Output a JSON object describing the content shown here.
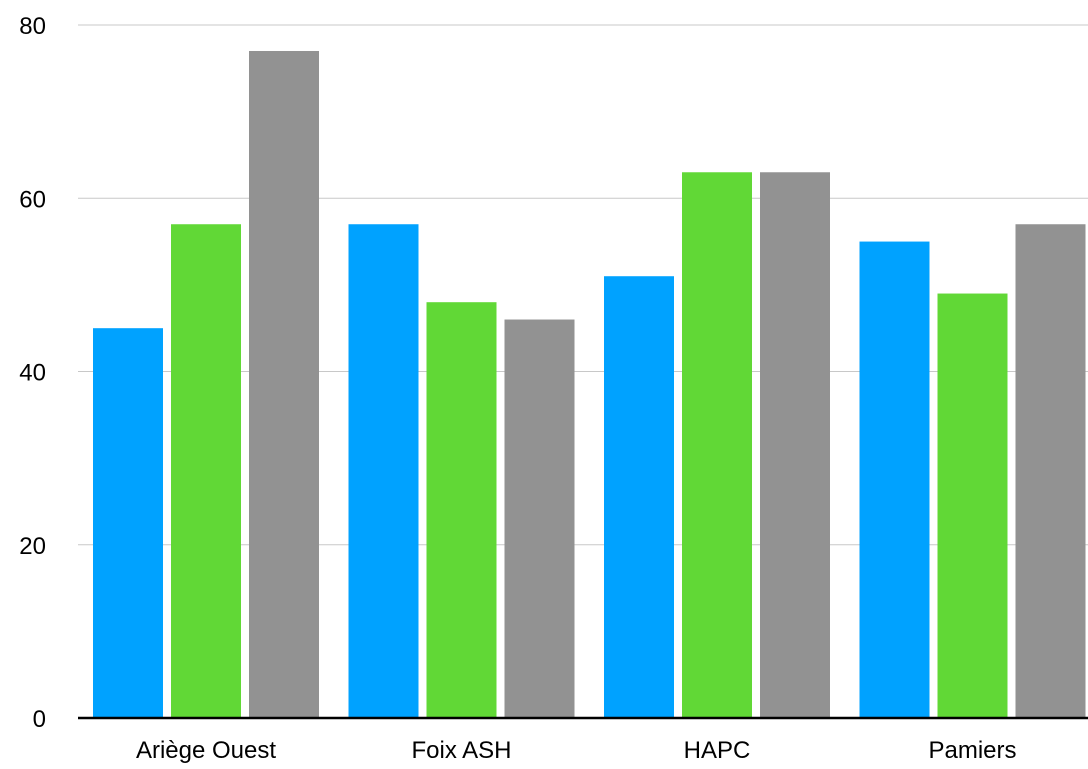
{
  "chart_data": {
    "type": "bar",
    "title": "",
    "xlabel": "",
    "ylabel": "",
    "categories": [
      "Ariège Ouest",
      "Foix ASH",
      "HAPC",
      "Pamiers"
    ],
    "series": [
      {
        "values": [
          45,
          57,
          51,
          55
        ],
        "color": "#00a2ff"
      },
      {
        "values": [
          57,
          48,
          63,
          49
        ],
        "color": "#61d836"
      },
      {
        "values": [
          77,
          46,
          63,
          57
        ],
        "color": "#929292"
      }
    ],
    "ylim": [
      0,
      80
    ],
    "yticks": [
      "0",
      "20",
      "40",
      "60",
      "80"
    ],
    "grid": true,
    "legend": "none"
  }
}
